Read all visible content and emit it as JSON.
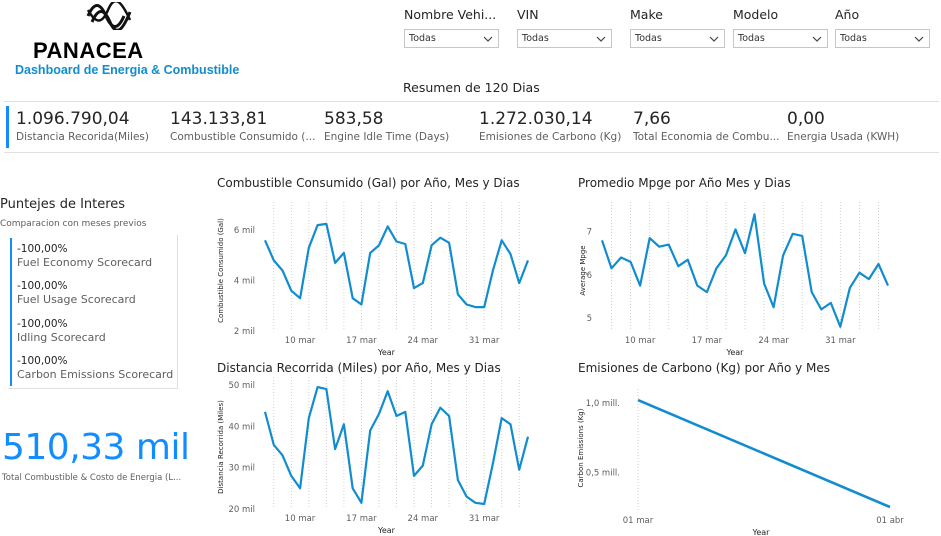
{
  "brand": {
    "name": "PANACEA",
    "subtitle": "Dashboard de Energia & Combustible",
    "logo_icon": "wave-logo-icon"
  },
  "filters": [
    {
      "title": "Nombre Vehi...",
      "value": "Todas"
    },
    {
      "title": "VIN",
      "value": "Todas"
    },
    {
      "title": "Make",
      "value": "Todas"
    },
    {
      "title": "Modelo",
      "value": "Todas"
    },
    {
      "title": "Año",
      "value": "Todas"
    }
  ],
  "summary_title": "Resumen de 120 Dias",
  "kpis": [
    {
      "value": "1.096.790,04",
      "label": "Distancia Recorida(Miles)"
    },
    {
      "value": "143.133,81",
      "label": "Combustible Consumido (..."
    },
    {
      "value": "583,58",
      "label": "Engine Idle Time (Days)"
    },
    {
      "value": "1.272.030,14",
      "label": "Emisiones de Carbono (Kg)"
    },
    {
      "value": "7,66",
      "label": "Total Economia de Combu..."
    },
    {
      "value": "0,00",
      "label": "Energia Usada (KWH)"
    }
  ],
  "interest": {
    "title": "Puntejes de Interes",
    "subtitle": "Comparacion con meses previos",
    "scores": [
      {
        "value": "-100,00%",
        "label": "Fuel Economy Scorecard"
      },
      {
        "value": "-100,00%",
        "label": "Fuel Usage Scorecard"
      },
      {
        "value": "-100,00%",
        "label": "Idling Scorecard"
      },
      {
        "value": "-100,00%",
        "label": "Carbon Emissions Scorecard"
      }
    ]
  },
  "total": {
    "value": "510,33 mil",
    "label": "Total Combustible & Costo de Energia (L..."
  },
  "colors": {
    "accent": "#118dff",
    "line": "#118dcf",
    "grid": "#c8c6c4"
  },
  "chart_data": [
    {
      "type": "line",
      "title": "Combustible Consumido (Gal) por Año, Mes y Dias",
      "xlabel": "Year",
      "ylabel": "Combustible Consumido (Gal)",
      "x_ticks": [
        "10 mar",
        "17 mar",
        "24 mar",
        "31 mar"
      ],
      "y_ticks": [
        "2 mil",
        "4 mil",
        "6 mil"
      ],
      "y_tick_values": [
        2,
        4,
        6
      ],
      "ylim": [
        2,
        6.8
      ],
      "x_start_day": 6,
      "x_end_day": 36,
      "values": [
        5.6,
        4.8,
        4.4,
        3.6,
        3.3,
        5.3,
        6.2,
        6.25,
        4.7,
        5.1,
        3.3,
        3.05,
        5.1,
        5.4,
        6.15,
        5.55,
        5.45,
        3.7,
        3.9,
        5.4,
        5.7,
        5.5,
        3.45,
        3.05,
        2.95,
        2.95,
        4.4,
        5.6,
        5.05,
        3.9,
        4.8
      ]
    },
    {
      "type": "line",
      "title": "Promedio Mpge por Año Mes y Dias",
      "xlabel": "Year",
      "ylabel": "Average Mpge",
      "x_ticks": [
        "10 mar",
        "17 mar",
        "24 mar",
        "31 mar"
      ],
      "y_ticks": [
        "5",
        "6",
        "7"
      ],
      "y_tick_values": [
        5,
        6,
        7
      ],
      "ylim": [
        4.7,
        7.5
      ],
      "x_start_day": 6,
      "x_end_day": 36,
      "values": [
        6.8,
        6.15,
        6.4,
        6.3,
        5.75,
        6.85,
        6.65,
        6.7,
        6.2,
        6.35,
        5.75,
        5.6,
        6.15,
        6.45,
        7.05,
        6.5,
        7.4,
        5.8,
        5.25,
        6.45,
        6.95,
        6.9,
        5.6,
        5.2,
        5.35,
        4.8,
        5.7,
        6.05,
        5.9,
        6.25,
        5.75
      ]
    },
    {
      "type": "line",
      "title": "Distancia Recorrida (Miles) por Año, Mes y Dias",
      "xlabel": "Year",
      "ylabel": "Distancia Recorrida (Miles)",
      "x_ticks": [
        "10 mar",
        "17 mar",
        "24 mar",
        "31 mar"
      ],
      "y_ticks": [
        "20 mil",
        "30 mil",
        "40 mil",
        "50 mil"
      ],
      "y_tick_values": [
        20,
        30,
        40,
        50
      ],
      "ylim": [
        20,
        50
      ],
      "x_start_day": 6,
      "x_end_day": 36,
      "values": [
        43.5,
        35.5,
        33,
        28,
        25,
        42,
        49.5,
        49,
        34.5,
        40.5,
        25,
        21.5,
        39,
        43,
        48.5,
        42.5,
        43.5,
        28,
        30.5,
        40.5,
        44.5,
        42.5,
        27,
        23,
        21.5,
        21.2,
        31,
        42,
        40.5,
        29.5,
        37.5
      ]
    },
    {
      "type": "line",
      "title": "Emisiones de Carbono (Kg) por Año y Mes",
      "xlabel": "Year",
      "ylabel": "Carbon Emissions (Kg)",
      "x": [
        "01 mar",
        "01 abr"
      ],
      "x_ticks": [
        "01 mar",
        "01 abr"
      ],
      "y_ticks": [
        "0,5 mill.",
        "1,0 mill."
      ],
      "y_tick_values": [
        0.5,
        1.0
      ],
      "ylim": [
        0.25,
        1.1
      ],
      "values": [
        1.02,
        0.25
      ]
    }
  ]
}
